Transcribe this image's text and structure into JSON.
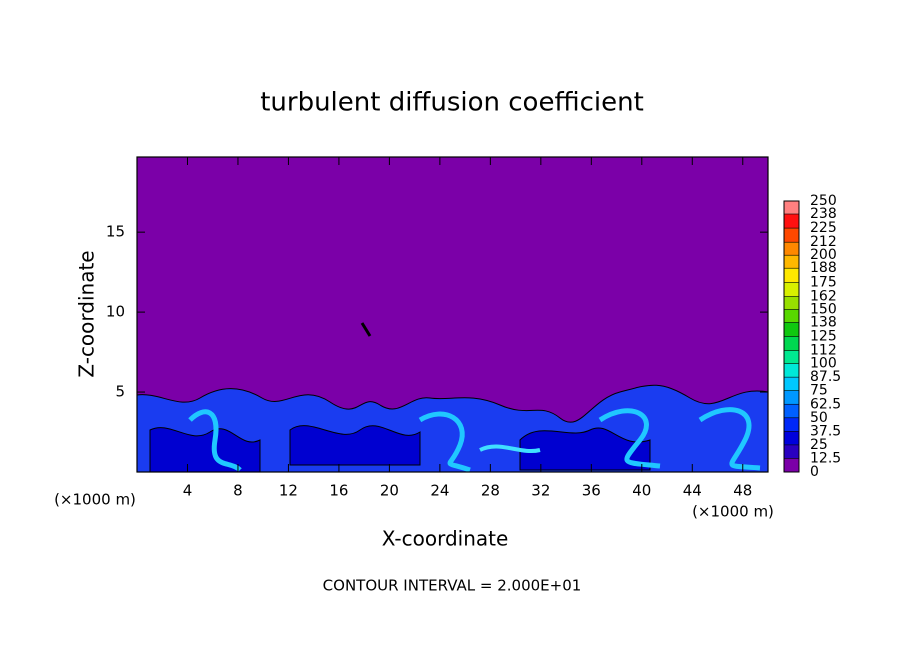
{
  "chart_data": {
    "type": "contour",
    "title": "turbulent diffusion coefficient",
    "x_label": "X-coordinate",
    "y_label": "Z-coordinate",
    "x_unit": "(×1000 m)",
    "y_unit": "(×1000 m)",
    "footnote": "CONTOUR INTERVAL = 2.000E+01",
    "xlim": [
      0,
      50
    ],
    "xticks": [
      4,
      8,
      12,
      16,
      20,
      24,
      28,
      32,
      36,
      40,
      44,
      48
    ],
    "ylim": [
      0,
      19.7
    ],
    "yticks": [
      5,
      10,
      15
    ],
    "colorbar": {
      "levels": [
        0,
        12.5,
        25,
        37.5,
        50,
        62.5,
        75,
        87.5,
        100,
        112,
        125,
        138,
        150,
        162,
        175,
        188,
        200,
        212,
        225,
        238,
        250
      ],
      "colors": [
        "#7b00a8",
        "#2a00c0",
        "#0000dc",
        "#0028f8",
        "#0060ff",
        "#0098ff",
        "#00c8ff",
        "#00e8d8",
        "#00e890",
        "#00d850",
        "#10c810",
        "#58d800",
        "#98e000",
        "#d8f000",
        "#ffe800",
        "#ffb800",
        "#ff8800",
        "#ff4800",
        "#ff1010",
        "#ff8080"
      ]
    }
  }
}
